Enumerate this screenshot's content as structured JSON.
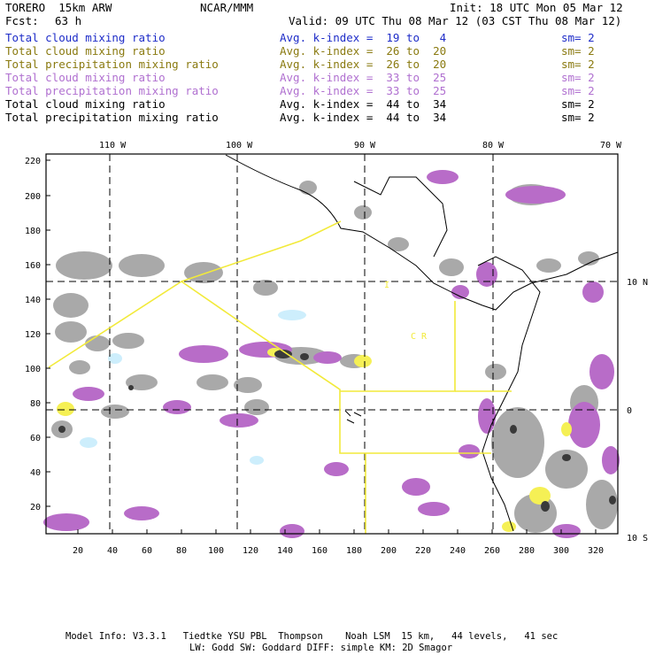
{
  "header": {
    "model": "TORERO  15km ARW",
    "org": "NCAR/MMM",
    "init": "Init: 18 UTC Mon 05 Mar 12",
    "fcst_label": "Fcst:",
    "fcst_value": "63 h",
    "valid": "Valid: 09 UTC Thu 08 Mar 12 (03 CST Thu 08 Mar 12)"
  },
  "legend": [
    {
      "field": "Total cloud mixing ratio",
      "kindex": "Avg. k-index =  19 to   4",
      "sm": "sm= 2",
      "color": "#1e2cc8"
    },
    {
      "field": "Total cloud mixing ratio",
      "kindex": "Avg. k-index =  26 to  20",
      "sm": "sm= 2",
      "color": "#8a7a10"
    },
    {
      "field": "Total precipitation mixing ratio",
      "kindex": "Avg. k-index =  26 to  20",
      "sm": "sm= 2",
      "color": "#8a7a10"
    },
    {
      "field": "Total cloud mixing ratio",
      "kindex": "Avg. k-index =  33 to  25",
      "sm": "sm= 2",
      "color": "#b070d0"
    },
    {
      "field": "Total precipitation mixing ratio",
      "kindex": "Avg. k-index =  33 to  25",
      "sm": "sm= 2",
      "color": "#b070d0"
    },
    {
      "field": "Total cloud mixing ratio",
      "kindex": "Avg. k-index =  44 to  34",
      "sm": "sm= 2",
      "color": "#000000"
    },
    {
      "field": "Total precipitation mixing ratio",
      "kindex": "Avg. k-index =  44 to  34",
      "sm": "sm= 2",
      "color": "#000000"
    }
  ],
  "map": {
    "lon_labels": [
      "110 W",
      "100 W",
      "90 W",
      "80 W",
      "70 W"
    ],
    "lat_labels": [
      "10 N",
      "0",
      "10 S"
    ],
    "y_ticks": [
      "220",
      "200",
      "180",
      "160",
      "140",
      "120",
      "100",
      "80",
      "60",
      "40",
      "20"
    ],
    "x_ticks": [
      "20",
      "40",
      "60",
      "80",
      "100",
      "120",
      "140",
      "160",
      "180",
      "200",
      "220",
      "240",
      "260",
      "280",
      "300",
      "320"
    ],
    "region_label": "C  R",
    "region_mark": "I"
  },
  "footer": {
    "line1": "Model Info: V3.3.1   Tiedtke YSU PBL  Thompson    Noah LSM  15 km,   44 levels,   41 sec",
    "line2": "LW: Godd SW: Goddard DIFF: simple KM: 2D Smagor"
  },
  "colors": {
    "cloud_gray": "#a9a9a9",
    "purple": "#b86cc8",
    "yellow": "#f5f055",
    "cyan": "#cdeefc",
    "boundary_yellow": "#f2ea3a"
  }
}
